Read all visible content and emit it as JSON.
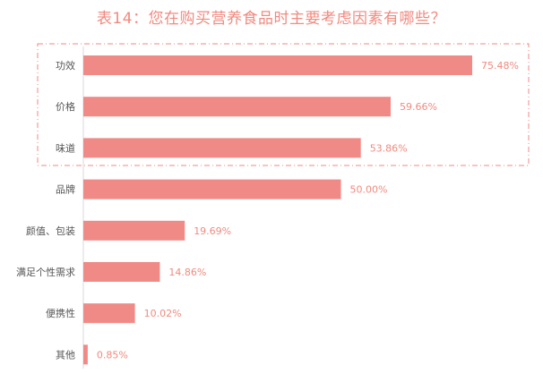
{
  "chart_data": {
    "type": "bar",
    "orientation": "horizontal",
    "title": "表14：您在购买营养食品时主要考虑因素有哪些？",
    "categories": [
      "功效",
      "价格",
      "味道",
      "品牌",
      "颜值、包装",
      "满足个性需求",
      "便携性",
      "其他"
    ],
    "values": [
      75.48,
      59.66,
      53.86,
      50.0,
      19.69,
      14.86,
      10.02,
      0.85
    ],
    "value_labels": [
      "75.48%",
      "59.66%",
      "53.86%",
      "50.00%",
      "19.69%",
      "14.86%",
      "10.02%",
      "0.85%"
    ],
    "value_unit": "%",
    "highlighted_categories": [
      "功效",
      "价格",
      "味道"
    ],
    "grid": false,
    "legend": "none"
  },
  "colors": {
    "bar": "#f08a86",
    "title": "#f08a7f",
    "value_label": "#f08a7f",
    "category_label": "#555555",
    "highlight_border": "#f08a86",
    "axis": "#d9d9d9"
  }
}
